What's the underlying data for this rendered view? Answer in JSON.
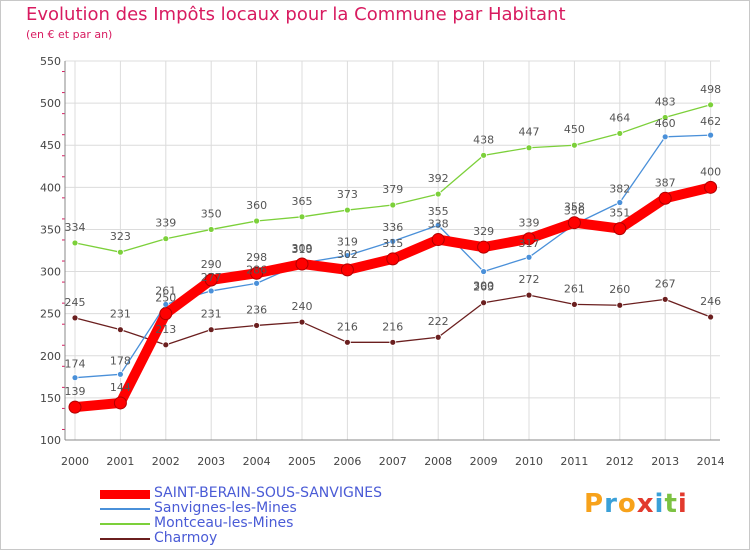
{
  "chart_data": {
    "type": "line",
    "title": "Evolution des Impôts locaux pour la Commune par Habitant",
    "subtitle": "(en € et par an)",
    "xlabel": "",
    "ylabel": "",
    "ylim": [
      100,
      550
    ],
    "yticks": [
      100,
      150,
      200,
      250,
      300,
      350,
      400,
      450,
      500,
      550
    ],
    "categories": [
      "2000",
      "2001",
      "2002",
      "2003",
      "2004",
      "2005",
      "2006",
      "2007",
      "2008",
      "2009",
      "2010",
      "2011",
      "2012",
      "2013",
      "2014"
    ],
    "series": [
      {
        "name": "SAINT-BERAIN-SOUS-SANVIGNES",
        "color": "#ff0000",
        "values": [
          139,
          144,
          250,
          290,
          298,
          309,
          302,
          315,
          338,
          329,
          339,
          358,
          351,
          387,
          400
        ]
      },
      {
        "name": "Sanvignes-les-Mines",
        "color": "#4a90d9",
        "values": [
          174,
          178,
          261,
          277,
          286,
          310,
          319,
          336,
          355,
          300,
          317,
          356,
          382,
          460,
          462
        ]
      },
      {
        "name": "Montceau-les-Mines",
        "color": "#7cd03a",
        "values": [
          334,
          323,
          339,
          350,
          360,
          365,
          373,
          379,
          392,
          438,
          447,
          450,
          464,
          483,
          498
        ]
      },
      {
        "name": "Charmoy",
        "color": "#6b1f1f",
        "values": [
          245,
          231,
          213,
          231,
          236,
          240,
          216,
          216,
          222,
          263,
          272,
          261,
          260,
          267,
          246
        ]
      }
    ],
    "grid": true,
    "legend": "bottom-left"
  },
  "branding": {
    "logo_text": "Proxiti",
    "logo_colors": [
      "#f7a21b",
      "#3aa0d8",
      "#f7a21b",
      "#e23a2e",
      "#3aa0d8",
      "#7cc242",
      "#e23a2e"
    ]
  }
}
